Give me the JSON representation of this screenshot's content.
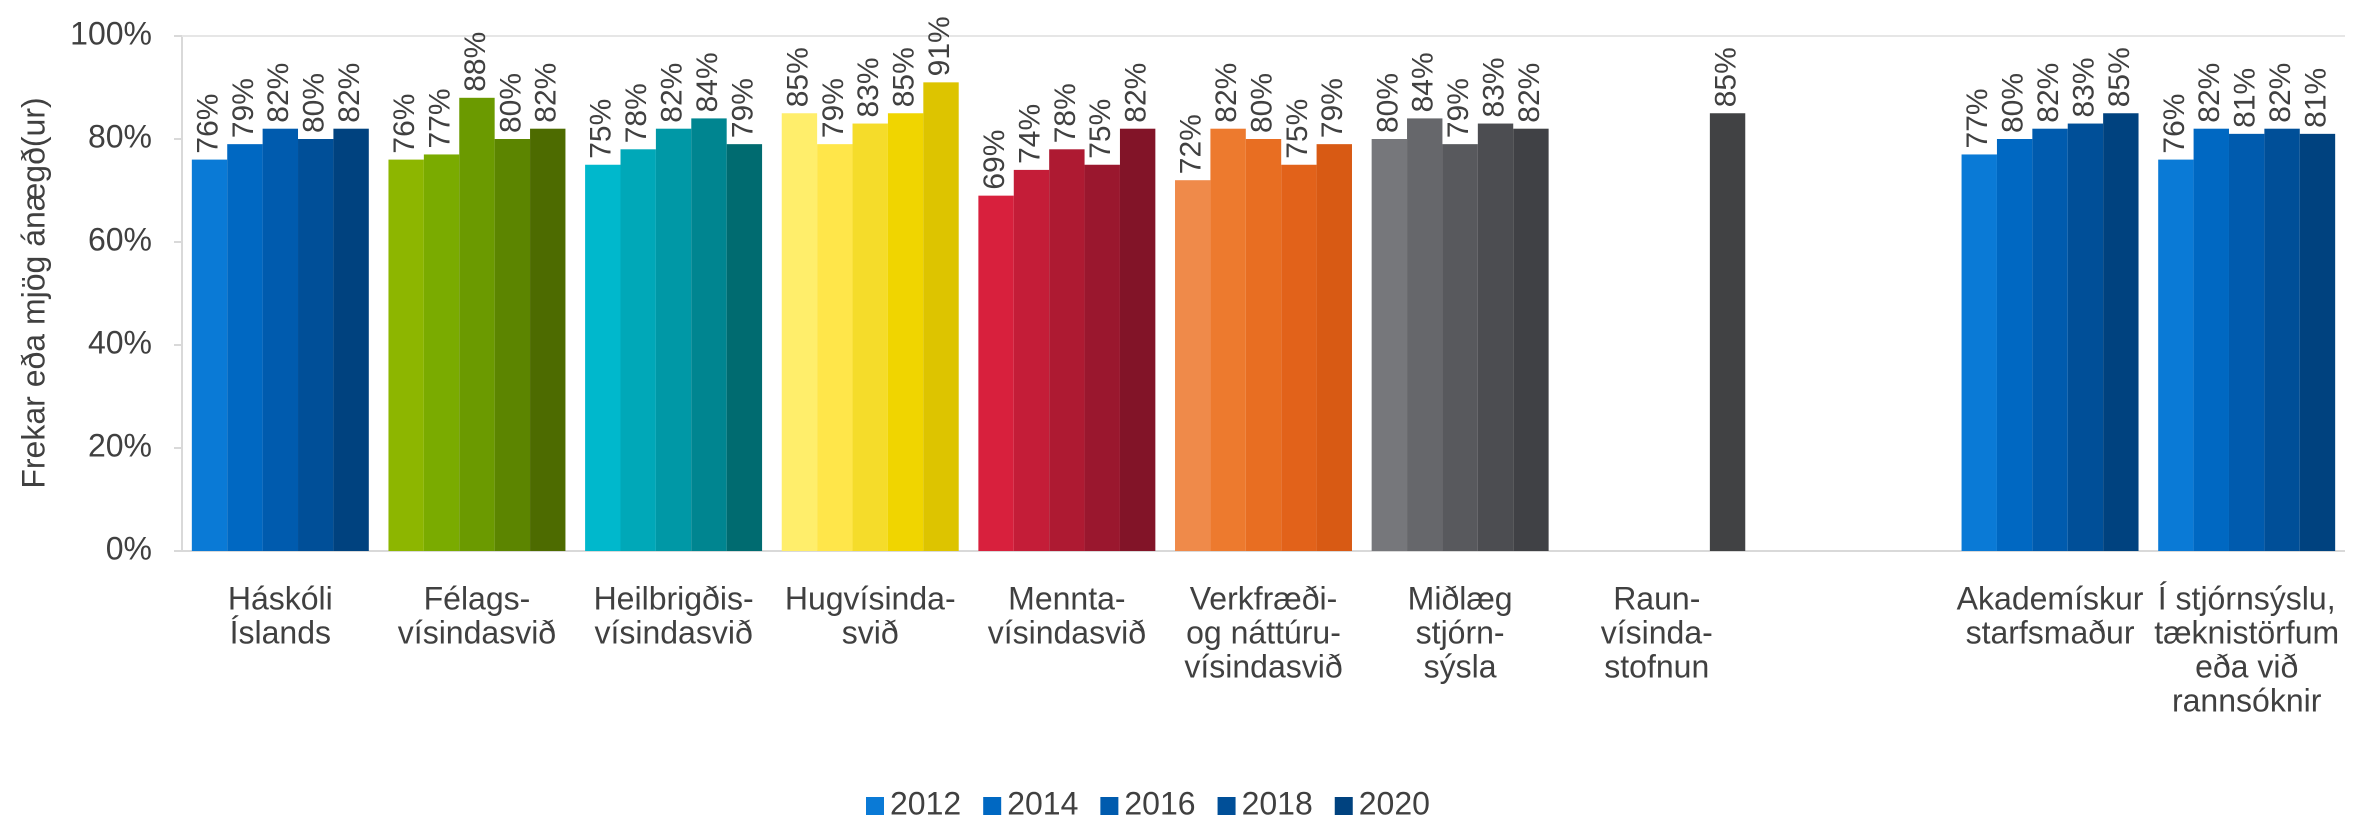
{
  "chart_data": {
    "type": "bar",
    "y_axis_label": "Frekar eða mjög ánægð(ur)",
    "categories": [
      [
        "Háskóli",
        "Íslands"
      ],
      [
        "Félags-",
        "vísindasvið"
      ],
      [
        "Heilbrigðis-",
        "vísindasvið"
      ],
      [
        "Hugvísinda-",
        "svið"
      ],
      [
        "Mennta-",
        "vísindasvið"
      ],
      [
        "Verkfræði-",
        "og náttúru-",
        "vísindasvið"
      ],
      [
        "Miðlæg",
        "stjórn-",
        "sýsla"
      ],
      [
        "Raun-",
        "vísinda-",
        "stofnun"
      ],
      null,
      [
        "Akademískur",
        "starfsmaður"
      ],
      [
        "Í stjórnsýslu,",
        "tæknistörfum",
        "eða við",
        "rannsóknir"
      ]
    ],
    "category_colors": [
      [
        "#0a7ad6",
        "#0068c2",
        "#005bae",
        "#004f98",
        "#00427f"
      ],
      [
        "#8db600",
        "#7aab00",
        "#6b9a00",
        "#5c8500",
        "#4d6b00"
      ],
      [
        "#00b8cc",
        "#00a8b8",
        "#0098a6",
        "#008590",
        "#006b70"
      ],
      [
        "#ffee6b",
        "#ffe64a",
        "#f5dc2a",
        "#f0d500",
        "#ddc400"
      ],
      [
        "#d8203d",
        "#c41d38",
        "#ae1a32",
        "#9a172e",
        "#821428"
      ],
      [
        "#ef8a4a",
        "#ed7a2e",
        "#e86e22",
        "#e2621a",
        "#d85a14"
      ],
      [
        "#76777b",
        "#66676b",
        "#58595d",
        "#4c4d51",
        "#404145"
      ],
      [
        "#76777b",
        "#66676b",
        "#58595d",
        "#4c4d51",
        "#414244"
      ],
      [
        "#0a7ad6",
        "#0068c2",
        "#005bae",
        "#004f98",
        "#00427f"
      ],
      [
        "#0a7ad6",
        "#0068c2",
        "#005bae",
        "#004f98",
        "#00427f"
      ],
      [
        "#0a7ad6",
        "#0068c2",
        "#005bae",
        "#004f98",
        "#00427f"
      ]
    ],
    "series": [
      {
        "name": "2012",
        "color": "#0a7ad6",
        "values": [
          76,
          76,
          75,
          85,
          69,
          72,
          80,
          null,
          null,
          77,
          76
        ],
        "value_labels": [
          "76%",
          "76%",
          "75%",
          "85%",
          "69%",
          "72%",
          "80%",
          null,
          null,
          "77%",
          "76%"
        ]
      },
      {
        "name": "2014",
        "color": "#0068c2",
        "values": [
          79,
          77,
          78,
          79,
          74,
          82,
          84,
          null,
          null,
          80,
          82
        ],
        "value_labels": [
          "79%",
          "77%",
          "78%",
          "79%",
          "74%",
          "82%",
          "84%",
          null,
          null,
          "80%",
          "82%"
        ]
      },
      {
        "name": "2016",
        "color": "#005bae",
        "values": [
          82,
          88,
          82,
          83,
          78,
          80,
          79,
          null,
          null,
          82,
          81
        ],
        "value_labels": [
          "82%",
          "88%",
          "82%",
          "83%",
          "78%",
          "80%",
          "79%",
          null,
          null,
          "82%",
          "81%"
        ]
      },
      {
        "name": "2018",
        "color": "#004f98",
        "values": [
          80,
          80,
          84,
          85,
          75,
          75,
          83,
          null,
          null,
          83,
          82
        ],
        "value_labels": [
          "80%",
          "80%",
          "84%",
          "85%",
          "75%",
          "75%",
          "83%",
          null,
          null,
          "83%",
          "82%"
        ]
      },
      {
        "name": "2020",
        "color": "#00427f",
        "values": [
          82,
          82,
          79,
          91,
          82,
          79,
          82,
          85,
          null,
          85,
          81
        ],
        "value_labels": [
          "82%",
          "82%",
          "79%",
          "91%",
          "82%",
          "79%",
          "82%",
          "85%",
          null,
          "85%",
          "81%"
        ]
      }
    ],
    "ylim": [
      0,
      100
    ],
    "yticks": [
      {
        "value": 0,
        "label": "0%"
      },
      {
        "value": 20,
        "label": "20%"
      },
      {
        "value": 40,
        "label": "40%"
      },
      {
        "value": 60,
        "label": "60%"
      },
      {
        "value": 80,
        "label": "80%"
      },
      {
        "value": 100,
        "label": "100%"
      }
    ],
    "grid": false
  }
}
